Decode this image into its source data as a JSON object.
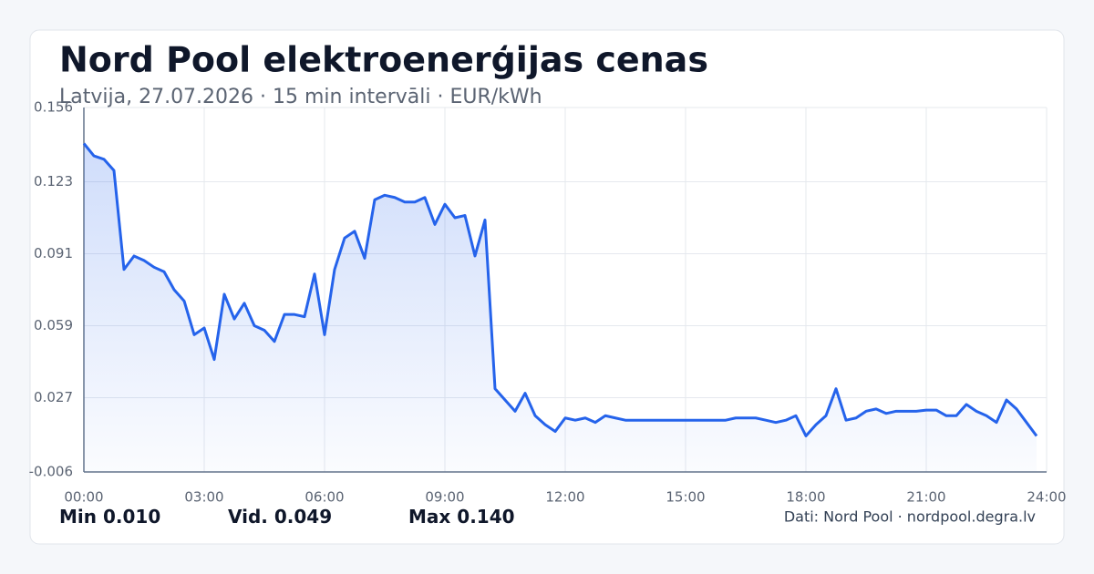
{
  "chart_data": {
    "type": "line",
    "title": "Nord Pool elektroenerģijas cenas",
    "subtitle": "Latvija, 27.07.2026 · 15 min intervāli · EUR/kWh",
    "x": [
      0,
      0.25,
      0.5,
      0.75,
      1,
      1.25,
      1.5,
      1.75,
      2,
      2.25,
      2.5,
      2.75,
      3,
      3.25,
      3.5,
      3.75,
      4,
      4.25,
      4.5,
      4.75,
      5,
      5.25,
      5.5,
      5.75,
      6,
      6.25,
      6.5,
      6.75,
      7,
      7.25,
      7.5,
      7.75,
      8,
      8.25,
      8.5,
      8.75,
      9,
      9.25,
      9.5,
      9.75,
      10,
      10.25,
      10.5,
      10.75,
      11,
      11.25,
      11.5,
      11.75,
      12,
      12.25,
      12.5,
      12.75,
      13,
      13.25,
      13.5,
      13.75,
      14,
      14.25,
      14.5,
      14.75,
      15,
      15.25,
      15.5,
      15.75,
      16,
      16.25,
      16.5,
      16.75,
      17,
      17.25,
      17.5,
      17.75,
      18,
      18.25,
      18.5,
      18.75,
      19,
      19.25,
      19.5,
      19.75,
      20,
      20.25,
      20.5,
      20.75,
      21,
      21.25,
      21.5,
      21.75,
      22,
      22.25,
      22.5,
      22.75,
      23,
      23.25,
      23.5,
      23.75
    ],
    "series": [
      {
        "name": "EUR/kWh",
        "color": "#2563eb",
        "values": [
          0.14,
          0.1345,
          0.133,
          0.128,
          0.084,
          0.09,
          0.088,
          0.085,
          0.083,
          0.075,
          0.07,
          0.055,
          0.058,
          0.044,
          0.073,
          0.062,
          0.069,
          0.059,
          0.057,
          0.052,
          0.064,
          0.064,
          0.063,
          0.082,
          0.055,
          0.084,
          0.098,
          0.101,
          0.089,
          0.115,
          0.117,
          0.116,
          0.114,
          0.114,
          0.116,
          0.104,
          0.113,
          0.107,
          0.108,
          0.09,
          0.106,
          0.031,
          0.026,
          0.021,
          0.029,
          0.019,
          0.015,
          0.012,
          0.018,
          0.017,
          0.018,
          0.016,
          0.019,
          0.018,
          0.017,
          0.017,
          0.017,
          0.017,
          0.017,
          0.017,
          0.017,
          0.017,
          0.017,
          0.017,
          0.017,
          0.018,
          0.018,
          0.018,
          0.017,
          0.016,
          0.017,
          0.019,
          0.01,
          0.015,
          0.019,
          0.031,
          0.017,
          0.018,
          0.021,
          0.022,
          0.02,
          0.021,
          0.021,
          0.021,
          0.0215,
          0.0215,
          0.019,
          0.019,
          0.024,
          0.021,
          0.019,
          0.016,
          0.026,
          0.022,
          0.016,
          0.01
        ]
      }
    ],
    "xlim": [
      0,
      24
    ],
    "xticks": [
      {
        "value": 0,
        "label": "00:00"
      },
      {
        "value": 3,
        "label": "03:00"
      },
      {
        "value": 6,
        "label": "06:00"
      },
      {
        "value": 9,
        "label": "09:00"
      },
      {
        "value": 12,
        "label": "12:00"
      },
      {
        "value": 15,
        "label": "15:00"
      },
      {
        "value": 18,
        "label": "18:00"
      },
      {
        "value": 21,
        "label": "21:00"
      },
      {
        "value": 24,
        "label": "24:00"
      }
    ],
    "ylim": [
      -0.006,
      0.156
    ],
    "yticks": [
      -0.006,
      0.027,
      0.059,
      0.091,
      0.123,
      0.156
    ],
    "grid": true,
    "stats": [
      {
        "label": "Min",
        "value": "0.010"
      },
      {
        "label": "Vid.",
        "value": "0.049"
      },
      {
        "label": "Max",
        "value": "0.140"
      }
    ],
    "source": "Dati: Nord Pool · nordpool.degra.lv"
  }
}
